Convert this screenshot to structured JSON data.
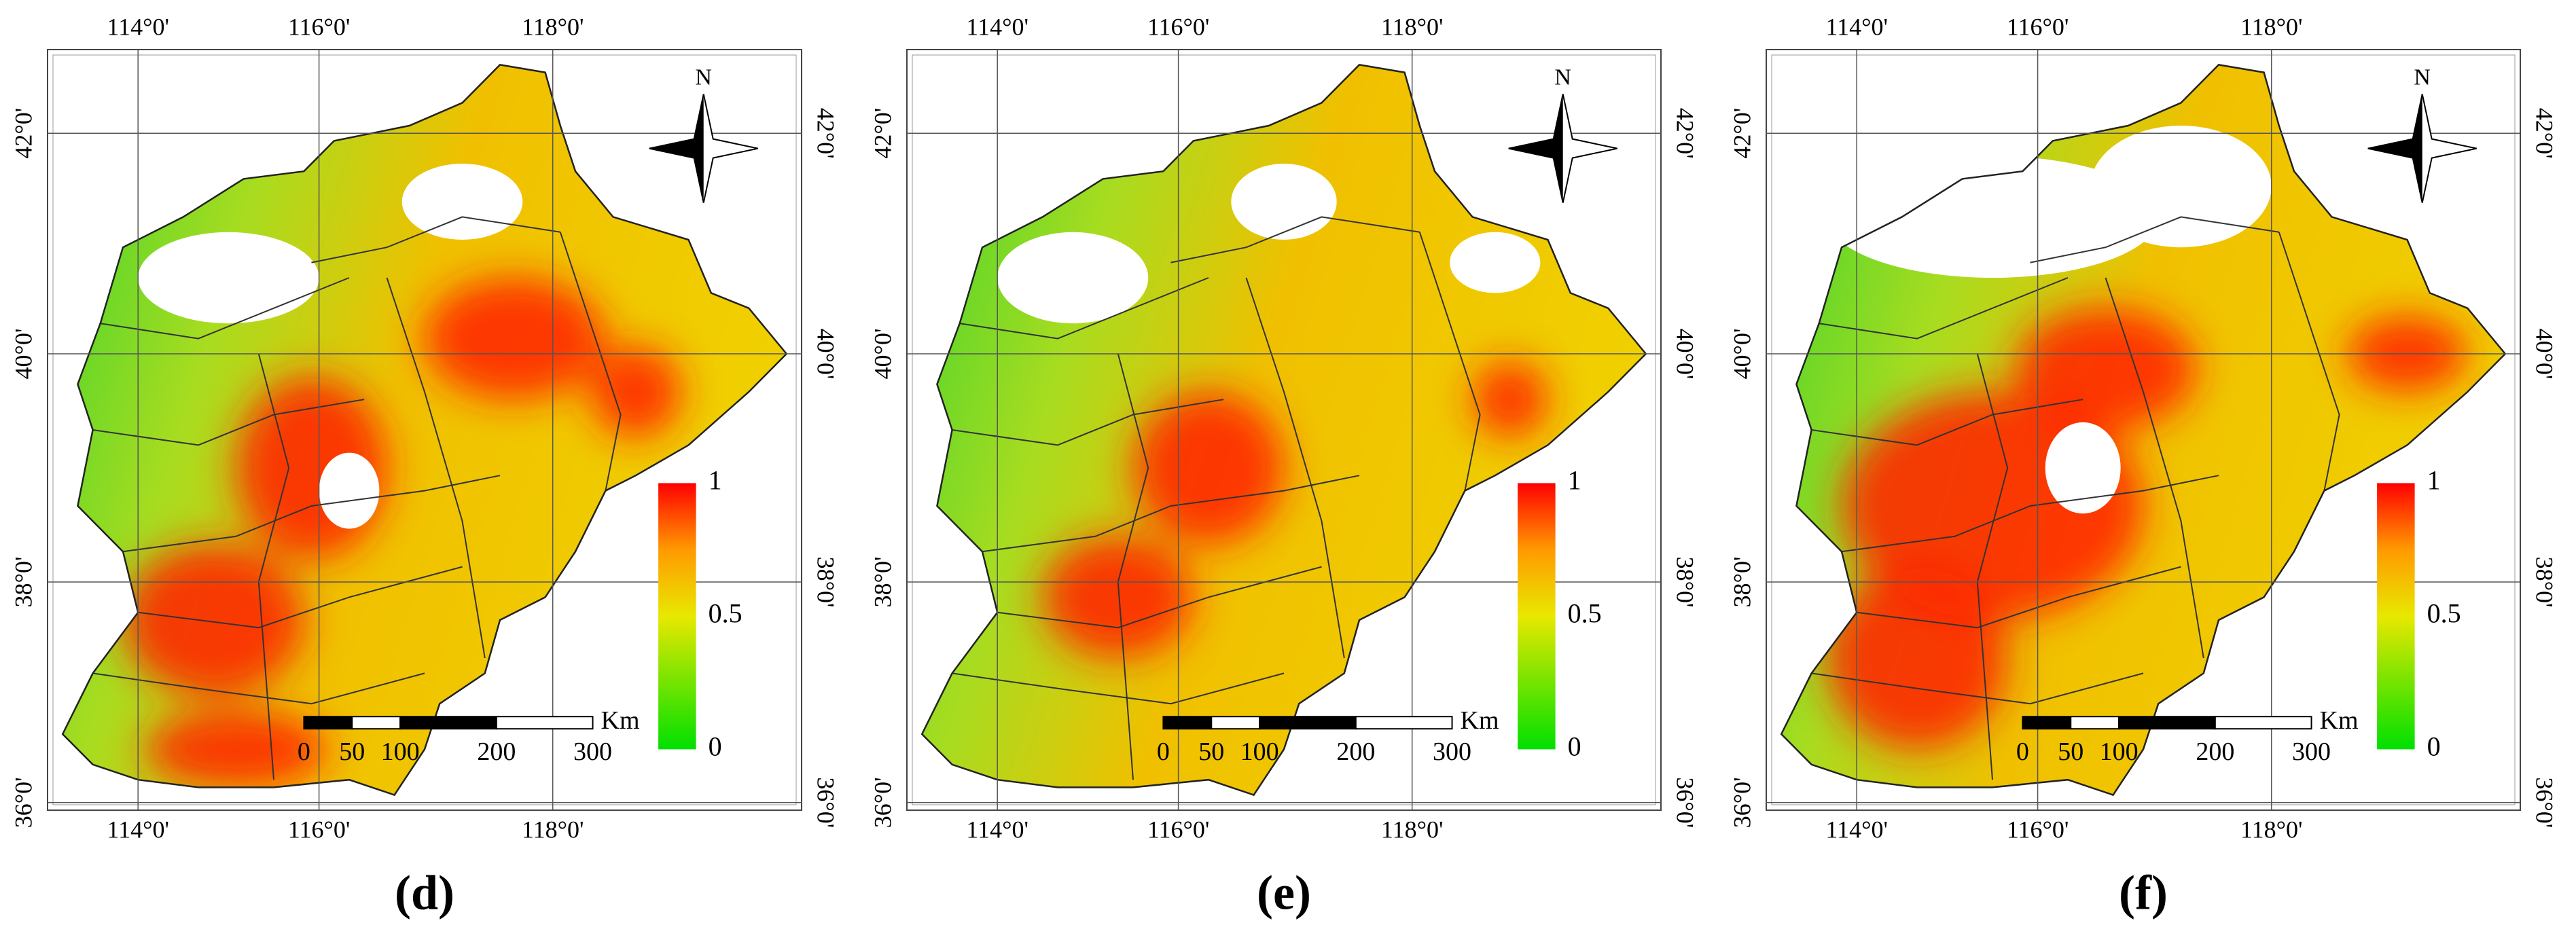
{
  "panels": [
    {
      "label": "(d)",
      "lon_labels": [
        "114°0'",
        "116°0'",
        "118°0'"
      ],
      "lat_labels": [
        "42°0'",
        "40°0'",
        "38°0'",
        "36°0'"
      ],
      "north": "N",
      "colorbar_ticks": [
        1,
        0.5,
        0
      ],
      "scale_ticks": [
        0,
        50,
        100,
        200,
        300
      ],
      "scale_unit": "Km"
    },
    {
      "label": "(e)",
      "lon_labels": [
        "114°0'",
        "116°0'",
        "118°0'"
      ],
      "lat_labels": [
        "42°0'",
        "40°0'",
        "38°0'",
        "36°0'"
      ],
      "north": "N",
      "colorbar_ticks": [
        1,
        0.5,
        0
      ],
      "scale_ticks": [
        0,
        50,
        100,
        200,
        300
      ],
      "scale_unit": "Km"
    },
    {
      "label": "(f)",
      "lon_labels": [
        "114°0'",
        "116°0'",
        "118°0'"
      ],
      "lat_labels": [
        "42°0'",
        "40°0'",
        "38°0'",
        "36°0'"
      ],
      "north": "N",
      "colorbar_ticks": [
        1,
        0.5,
        0
      ],
      "scale_ticks": [
        0,
        50,
        100,
        200,
        300
      ],
      "scale_unit": "Km"
    }
  ]
}
